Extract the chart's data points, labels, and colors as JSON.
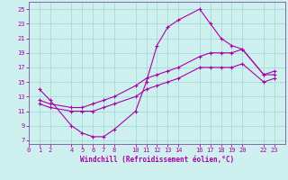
{
  "xlabel": "Windchill (Refroidissement éolien,°C)",
  "bg_color": "#cef0ee",
  "grid_color": "#aadddd",
  "line_color": "#aa00aa",
  "spine_color": "#8866aa",
  "xticks": [
    0,
    1,
    2,
    4,
    5,
    6,
    7,
    8,
    10,
    11,
    12,
    13,
    14,
    16,
    17,
    18,
    19,
    20,
    22,
    23
  ],
  "yticks": [
    7,
    9,
    11,
    13,
    15,
    17,
    19,
    21,
    23,
    25
  ],
  "xlim": [
    0,
    24
  ],
  "ylim": [
    6.5,
    26
  ],
  "line1_x": [
    1,
    2,
    4,
    5,
    6,
    7,
    8,
    10,
    11,
    12,
    13,
    14,
    16,
    17,
    18,
    19,
    20,
    22,
    23
  ],
  "line1_y": [
    14,
    12.5,
    9,
    8,
    7.5,
    7.5,
    8.5,
    11,
    15,
    20,
    22.5,
    23.5,
    25,
    23,
    21,
    20,
    19.5,
    16,
    16
  ],
  "line2_x": [
    1,
    2,
    4,
    5,
    6,
    7,
    8,
    10,
    11,
    12,
    13,
    14,
    16,
    17,
    18,
    19,
    20,
    22,
    23
  ],
  "line2_y": [
    12.5,
    12,
    11.5,
    11.5,
    12,
    12.5,
    13,
    14.5,
    15.5,
    16,
    16.5,
    17,
    18.5,
    19,
    19,
    19,
    19.5,
    16,
    16.5
  ],
  "line3_x": [
    1,
    2,
    4,
    5,
    6,
    7,
    8,
    10,
    11,
    12,
    13,
    14,
    16,
    17,
    18,
    19,
    20,
    22,
    23
  ],
  "line3_y": [
    12,
    11.5,
    11,
    11,
    11,
    11.5,
    12,
    13,
    14,
    14.5,
    15,
    15.5,
    17,
    17,
    17,
    17,
    17.5,
    15,
    15.5
  ]
}
